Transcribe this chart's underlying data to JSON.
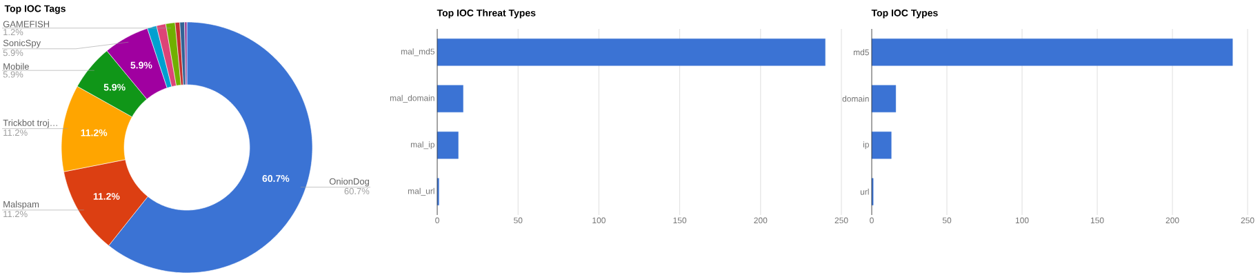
{
  "chart_data": [
    {
      "type": "donut",
      "title": "Top IOC Tags",
      "categories": [
        "OnionDog",
        "Malspam",
        "Trickbot troj…",
        "Mobile",
        "SonicSpy",
        null,
        null,
        "GAMEFISH",
        null,
        null,
        null
      ],
      "values": [
        60.7,
        11.2,
        11.2,
        5.9,
        5.9,
        1.2,
        1.2,
        1.2,
        0.6,
        0.6,
        0.3
      ],
      "colors": [
        "#3b73d4",
        "#dc3f12",
        "#ffa500",
        "#109618",
        "#a000a0",
        "#00a0d0",
        "#dd4477",
        "#70b000",
        "#c23030",
        "#316395",
        "#994499"
      ],
      "value_labels": [
        "60.7%",
        "11.2%",
        "11.2%",
        "5.9%",
        "5.9%",
        null,
        null,
        "1.2%",
        null,
        null,
        null
      ]
    },
    {
      "type": "bar",
      "orientation": "horizontal",
      "title": "Top IOC Threat Types",
      "categories": [
        "mal_md5",
        "mal_domain",
        "mal_ip",
        "mal_url"
      ],
      "values": [
        240,
        16,
        13,
        1
      ],
      "color": "#3b73d4",
      "xlim": [
        0,
        250
      ],
      "xticks": [
        0,
        50,
        100,
        150,
        200,
        250
      ],
      "grid": "x"
    },
    {
      "type": "bar",
      "orientation": "horizontal",
      "title": "Top IOC Types",
      "categories": [
        "md5",
        "domain",
        "ip",
        "url"
      ],
      "values": [
        240,
        16,
        13,
        1
      ],
      "color": "#3b73d4",
      "xlim": [
        0,
        250
      ],
      "xticks": [
        0,
        50,
        100,
        150,
        200,
        250
      ],
      "grid": "x"
    }
  ]
}
